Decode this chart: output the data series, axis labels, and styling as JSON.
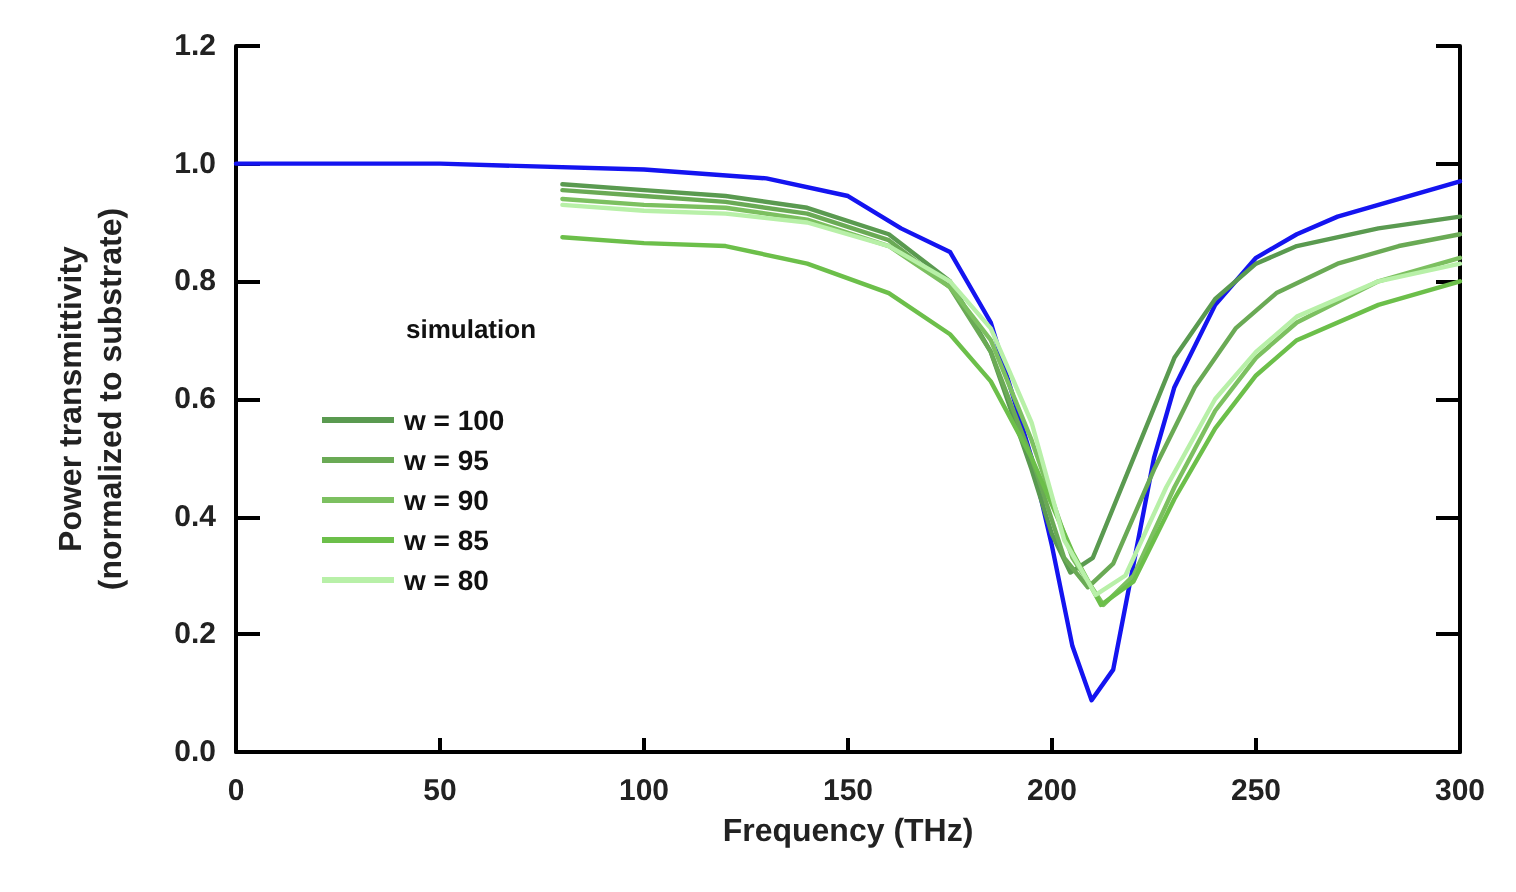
{
  "chart_data": {
    "type": "line",
    "xlabel": "Frequency (THz)",
    "ylabel": "Power transmittivity\n(normalized to substrate)",
    "legend_title": "simulation",
    "legend": "left",
    "grid": false,
    "marker": "none",
    "line_style": "solid",
    "xlim": [
      0,
      300
    ],
    "xticks": [
      0,
      50,
      100,
      150,
      200,
      250,
      300
    ],
    "ylim": [
      0,
      1.2
    ],
    "yticks": [
      {
        "value": 0,
        "label": "0.0"
      },
      0.2,
      0.4,
      0.6,
      0.8,
      {
        "value": 1,
        "label": "1.0"
      },
      1.2
    ],
    "series": [
      {
        "color": "#1414f0",
        "x": [
          0,
          50,
          100,
          130,
          150,
          163,
          175,
          185,
          195,
          200,
          205,
          209.7,
          215,
          220,
          225,
          230,
          240,
          250,
          260,
          270,
          280,
          290,
          300
        ],
        "values": [
          1.0,
          1.0,
          0.99,
          0.975,
          0.945,
          0.89,
          0.85,
          0.73,
          0.5,
          0.35,
          0.18,
          0.088,
          0.14,
          0.32,
          0.5,
          0.62,
          0.76,
          0.84,
          0.88,
          0.91,
          0.93,
          0.95,
          0.97
        ]
      },
      {
        "name": "w = 100",
        "color": "#5a9a50",
        "x": [
          80,
          100,
          120,
          140,
          160,
          175,
          185,
          195,
          200,
          204.5,
          210,
          220,
          230,
          240,
          250,
          260,
          280,
          300
        ],
        "values": [
          0.965,
          0.955,
          0.945,
          0.925,
          0.88,
          0.8,
          0.68,
          0.48,
          0.37,
          0.305,
          0.33,
          0.5,
          0.67,
          0.77,
          0.83,
          0.86,
          0.89,
          0.91
        ]
      },
      {
        "name": "w = 95",
        "color": "#6aaa55",
        "x": [
          80,
          100,
          120,
          140,
          160,
          175,
          185,
          195,
          203,
          208.8,
          215,
          225,
          235,
          245,
          255,
          270,
          285,
          300
        ],
        "values": [
          0.955,
          0.945,
          0.935,
          0.915,
          0.87,
          0.79,
          0.68,
          0.5,
          0.33,
          0.28,
          0.32,
          0.48,
          0.62,
          0.72,
          0.78,
          0.83,
          0.86,
          0.88
        ]
      },
      {
        "name": "w = 90",
        "color": "#7cc060",
        "x": [
          80,
          100,
          120,
          140,
          160,
          175,
          185,
          195,
          205,
          212.6,
          220,
          230,
          240,
          250,
          260,
          280,
          300
        ],
        "values": [
          0.94,
          0.93,
          0.925,
          0.905,
          0.86,
          0.79,
          0.7,
          0.53,
          0.33,
          0.25,
          0.3,
          0.45,
          0.58,
          0.67,
          0.73,
          0.8,
          0.84
        ]
      },
      {
        "name": "w = 85",
        "color": "#6cbf4a",
        "x": [
          80,
          100,
          120,
          140,
          160,
          175,
          185,
          195,
          205,
          212,
          220,
          230,
          240,
          250,
          260,
          280,
          300
        ],
        "values": [
          0.875,
          0.865,
          0.86,
          0.83,
          0.78,
          0.71,
          0.63,
          0.5,
          0.34,
          0.25,
          0.29,
          0.43,
          0.55,
          0.64,
          0.7,
          0.76,
          0.8
        ]
      },
      {
        "name": "w = 80",
        "color": "#b8f0a8",
        "x": [
          80,
          100,
          120,
          140,
          160,
          175,
          185,
          195,
          203,
          210.7,
          218,
          228,
          240,
          250,
          260,
          280,
          300
        ],
        "values": [
          0.93,
          0.92,
          0.915,
          0.9,
          0.86,
          0.8,
          0.72,
          0.56,
          0.36,
          0.267,
          0.3,
          0.45,
          0.6,
          0.68,
          0.74,
          0.8,
          0.83
        ]
      }
    ]
  }
}
